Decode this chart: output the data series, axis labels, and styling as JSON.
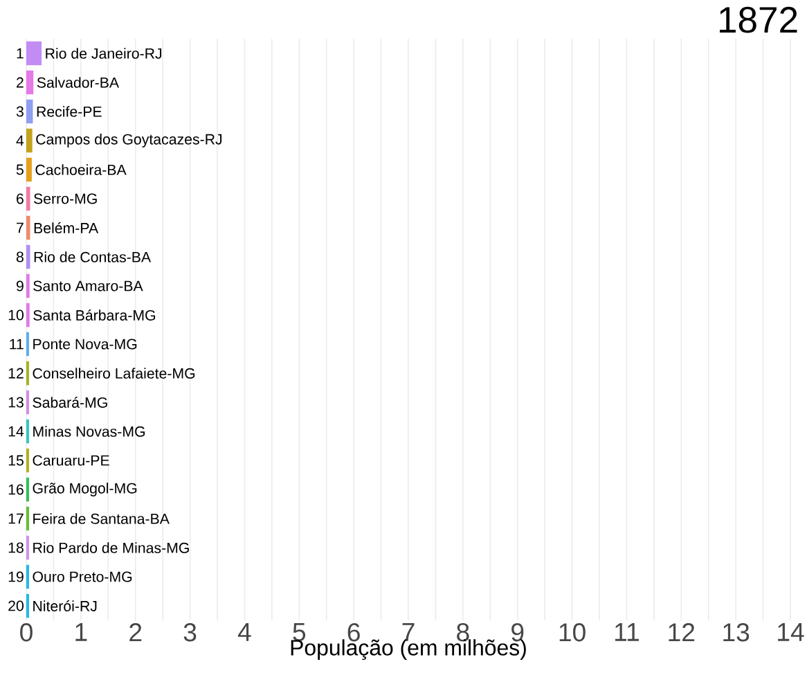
{
  "chart_data": {
    "type": "bar",
    "orientation": "horizontal",
    "title": "1872",
    "xlabel": "População (em milhões)",
    "categories": [
      "Rio de Janeiro-RJ",
      "Salvador-BA",
      "Recife-PE",
      "Campos dos Goytacazes-RJ",
      "Cachoeira-BA",
      "Serro-MG",
      "Belém-PA",
      "Rio de Contas-BA",
      "Santo Amaro-BA",
      "Santa Bárbara-MG",
      "Ponte Nova-MG",
      "Conselheiro Lafaiete-MG",
      "Sabará-MG",
      "Minas Novas-MG",
      "Caruaru-PE",
      "Grão Mogol-MG",
      "Feira de Santana-BA",
      "Rio Pardo de Minas-MG",
      "Ouro Preto-MG",
      "Niterói-RJ"
    ],
    "values": [
      0.28,
      0.13,
      0.12,
      0.11,
      0.1,
      0.07,
      0.07,
      0.07,
      0.06,
      0.06,
      0.05,
      0.05,
      0.05,
      0.05,
      0.05,
      0.05,
      0.05,
      0.05,
      0.05,
      0.05
    ],
    "colors": [
      "#c38cf5",
      "#e57ae8",
      "#8fa0f0",
      "#c4a21a",
      "#e5a01c",
      "#f57aa0",
      "#ef8a6a",
      "#b090f0",
      "#e07ae8",
      "#e07ae8",
      "#5aaef0",
      "#a8b020",
      "#d88ae8",
      "#30c8c0",
      "#b0b020",
      "#30c050",
      "#60c030",
      "#d090f0",
      "#20b8e8",
      "#20b8e8"
    ],
    "annotations": [
      "1",
      "2",
      "3",
      "4",
      "5",
      "6",
      "7",
      "8",
      "9",
      "10",
      "11",
      "12",
      "13",
      "14",
      "15",
      "16",
      "17",
      "18",
      "19",
      "20"
    ],
    "xlim": [
      0,
      14
    ],
    "xticks": [
      0,
      1,
      2,
      3,
      4,
      5,
      6,
      7,
      8,
      9,
      10,
      11,
      12,
      13,
      14
    ],
    "grid": "x",
    "tick_labels": "x"
  }
}
